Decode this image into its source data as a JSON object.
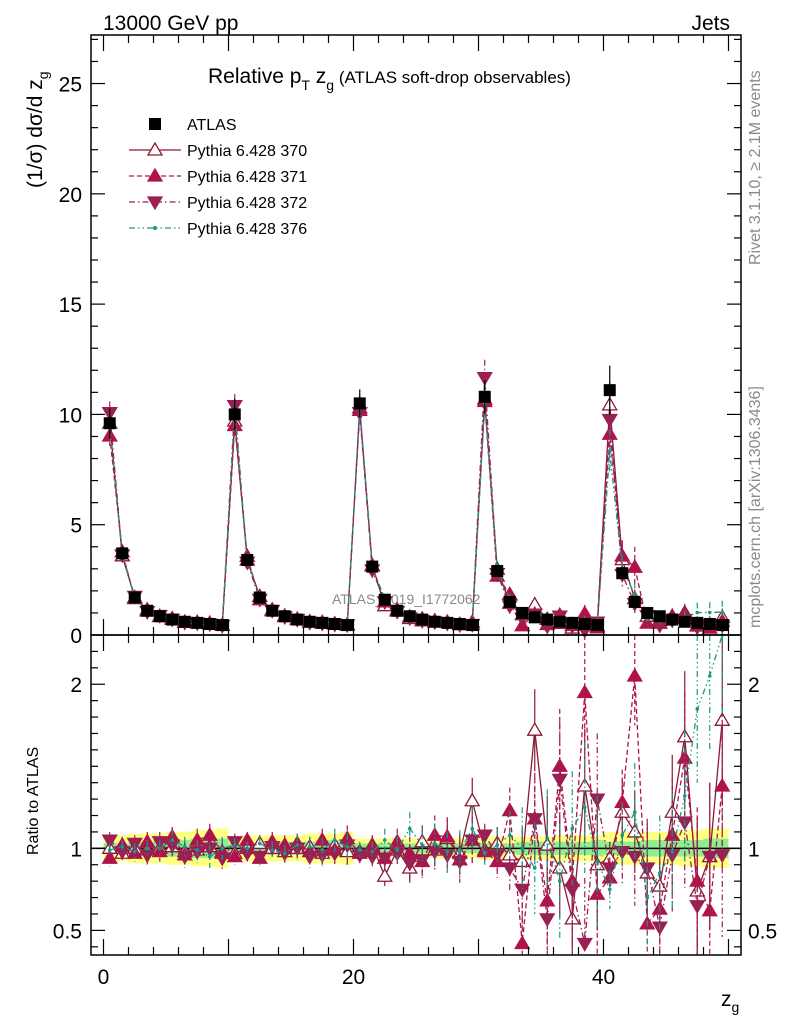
{
  "header": {
    "left": "13000 GeV pp",
    "right": "Jets"
  },
  "side_labels": {
    "rivet": "Rivet 3.1.10, ≥ 2.1M events",
    "mcplots": "mcplots.cern.ch [arXiv:1306.3436]"
  },
  "watermark": "ATLAS_2019_I1772062",
  "chart_data": {
    "type": "line",
    "title": "Relative p_T z_g (ATLAS soft-drop observables)",
    "title_parts": {
      "main": "Relative p",
      "sub_T": "T",
      "mid": " z",
      "sub_g": "g",
      "rest": " (ATLAS soft-drop observables)"
    },
    "xlabel": "z_g",
    "xlabel_parts": {
      "main": "z",
      "sub": "g"
    },
    "ylabel": "(1/σ) dσ/d z_g",
    "ylabel_parts": {
      "main": "(1/σ) dσ/d z",
      "sub": "g"
    },
    "ratio_ylabel": "Ratio to ATLAS",
    "xlim": [
      -1.0,
      51.0
    ],
    "ylim": [
      0,
      27.2
    ],
    "ratio_ylim": [
      0.35,
      2.3
    ],
    "x_ticks": [
      0,
      20,
      40
    ],
    "y_ticks": [
      0,
      5,
      10,
      15,
      20,
      25
    ],
    "ratio_ticks": [
      0.5,
      1,
      2
    ],
    "ratio_tick_labels": [
      "0.5",
      "1",
      "2"
    ],
    "legend_position": "top-left",
    "colors": {
      "atlas": "#000000",
      "p370": "#8a1a33",
      "p371": "#b0124b",
      "p372": "#9a1f52",
      "p376": "#169a86",
      "band_stat": "#90ee90",
      "band_total": "#ffff80"
    },
    "x": [
      0.5,
      1.5,
      2.5,
      3.5,
      4.5,
      5.5,
      6.5,
      7.5,
      8.5,
      9.5,
      10.5,
      11.5,
      12.5,
      13.5,
      14.5,
      15.5,
      16.5,
      17.5,
      18.5,
      19.5,
      20.5,
      21.5,
      22.5,
      23.5,
      24.5,
      25.5,
      26.5,
      27.5,
      28.5,
      29.5,
      30.5,
      31.5,
      32.5,
      33.5,
      34.5,
      35.5,
      36.5,
      37.5,
      38.5,
      39.5,
      40.5,
      41.5,
      42.5,
      43.5,
      44.5,
      45.5,
      46.5,
      47.5,
      48.5,
      49.5
    ],
    "atlas": {
      "name": "ATLAS",
      "values": [
        9.6,
        3.7,
        1.7,
        1.1,
        0.85,
        0.7,
        0.6,
        0.55,
        0.5,
        0.45,
        10.0,
        3.4,
        1.7,
        1.1,
        0.85,
        0.7,
        0.6,
        0.55,
        0.5,
        0.45,
        10.5,
        3.1,
        1.6,
        1.1,
        0.85,
        0.7,
        0.6,
        0.55,
        0.5,
        0.45,
        10.8,
        2.9,
        1.5,
        1.0,
        0.8,
        0.7,
        0.6,
        0.55,
        0.5,
        0.45,
        11.1,
        2.8,
        1.5,
        1.0,
        0.85,
        0.7,
        0.6,
        0.55,
        0.5,
        0.45
      ],
      "total_err": [
        0.07,
        0.08,
        0.09,
        0.09,
        0.09,
        0.1,
        0.1,
        0.11,
        0.11,
        0.12,
        0.07,
        0.08,
        0.08,
        0.08,
        0.08,
        0.08,
        0.09,
        0.09,
        0.09,
        0.1,
        0.06,
        0.06,
        0.06,
        0.06,
        0.06,
        0.06,
        0.06,
        0.06,
        0.06,
        0.06,
        0.07,
        0.07,
        0.07,
        0.07,
        0.07,
        0.07,
        0.08,
        0.08,
        0.08,
        0.08,
        0.1,
        0.1,
        0.1,
        0.1,
        0.1,
        0.1,
        0.11,
        0.11,
        0.12,
        0.12
      ],
      "stat_err": [
        0.03,
        0.03,
        0.04,
        0.04,
        0.05,
        0.05,
        0.05,
        0.06,
        0.06,
        0.06,
        0.03,
        0.03,
        0.03,
        0.04,
        0.04,
        0.04,
        0.04,
        0.05,
        0.05,
        0.05,
        0.03,
        0.03,
        0.03,
        0.03,
        0.03,
        0.03,
        0.03,
        0.03,
        0.03,
        0.03,
        0.03,
        0.03,
        0.03,
        0.04,
        0.04,
        0.04,
        0.04,
        0.04,
        0.04,
        0.05,
        0.04,
        0.04,
        0.04,
        0.05,
        0.05,
        0.05,
        0.05,
        0.05,
        0.06,
        0.06
      ]
    },
    "series": [
      {
        "name": "Pythia 6.428 370",
        "ratio": [
          1.0,
          0.97,
          1.0,
          0.99,
          1.0,
          1.01,
          0.98,
          0.99,
          1.01,
          0.97,
          0.97,
          1.0,
          1.03,
          1.0,
          0.98,
          1.0,
          1.01,
          0.97,
          1.02,
          0.98,
          0.98,
          1.02,
          0.83,
          0.99,
          0.88,
          1.04,
          0.99,
          1.06,
          0.97,
          1.29,
          0.99,
          1.03,
          0.96,
          0.92,
          1.72,
          1.02,
          0.88,
          0.57,
          1.38,
          0.9,
          0.94,
          1.22,
          1.1,
          0.85,
          0.77,
          1.22,
          1.68,
          0.74,
          0.95,
          1.78
        ],
        "err": [
          0.04,
          0.04,
          0.05,
          0.05,
          0.05,
          0.06,
          0.06,
          0.06,
          0.07,
          0.07,
          0.04,
          0.04,
          0.05,
          0.05,
          0.05,
          0.06,
          0.06,
          0.07,
          0.07,
          0.08,
          0.05,
          0.06,
          0.06,
          0.08,
          0.09,
          0.1,
          0.1,
          0.12,
          0.12,
          0.14,
          0.06,
          0.1,
          0.12,
          0.2,
          0.25,
          0.3,
          0.3,
          0.35,
          0.35,
          0.4,
          0.1,
          0.2,
          0.25,
          0.3,
          0.3,
          0.35,
          0.4,
          0.45,
          0.45,
          0.5
        ]
      },
      {
        "name": "Pythia 6.428 371",
        "ratio": [
          0.94,
          1.02,
          0.97,
          1.04,
          0.98,
          1.07,
          0.96,
          1.05,
          1.08,
          0.98,
          0.95,
          1.05,
          0.94,
          1.04,
          1.02,
          1.03,
          0.98,
          1.05,
          0.99,
          1.06,
          0.97,
          1.01,
          0.94,
          1.04,
          0.97,
          0.92,
          1.08,
          1.07,
          0.93,
          1.05,
          0.98,
          0.92,
          1.23,
          0.42,
          1.18,
          0.68,
          1.5,
          0.8,
          1.95,
          0.72,
          0.82,
          1.28,
          2.05,
          0.54,
          0.63,
          1.08,
          1.55,
          0.8,
          0.62,
          1.38
        ],
        "err": [
          0.05,
          0.05,
          0.05,
          0.06,
          0.06,
          0.06,
          0.07,
          0.07,
          0.07,
          0.08,
          0.05,
          0.05,
          0.05,
          0.06,
          0.06,
          0.06,
          0.07,
          0.07,
          0.08,
          0.08,
          0.05,
          0.06,
          0.06,
          0.08,
          0.1,
          0.1,
          0.12,
          0.12,
          0.13,
          0.14,
          0.07,
          0.1,
          0.14,
          0.25,
          0.25,
          0.3,
          0.35,
          0.35,
          0.4,
          0.4,
          0.12,
          0.2,
          0.3,
          0.3,
          0.35,
          0.35,
          0.4,
          0.45,
          0.45,
          0.5
        ]
      },
      {
        "name": "Pythia 6.428 372",
        "ratio": [
          1.05,
          0.98,
          1.03,
          0.96,
          1.04,
          1.02,
          0.95,
          0.98,
          1.0,
          0.94,
          1.04,
          0.97,
          0.95,
          1.01,
          0.97,
          1.0,
          0.95,
          0.96,
          0.97,
          1.02,
          0.96,
          0.95,
          0.94,
          0.97,
          0.91,
          0.93,
          0.98,
          0.96,
          0.92,
          1.05,
          1.08,
          0.96,
          0.88,
          0.75,
          1.18,
          0.57,
          1.42,
          0.75,
          0.42,
          1.3,
          0.88,
          0.98,
          0.95,
          0.88,
          0.52,
          0.96,
          1.16,
          0.65,
          0.95,
          0.96
        ],
        "err": [
          0.05,
          0.05,
          0.05,
          0.06,
          0.06,
          0.06,
          0.07,
          0.07,
          0.08,
          0.08,
          0.05,
          0.05,
          0.05,
          0.06,
          0.06,
          0.07,
          0.07,
          0.07,
          0.08,
          0.08,
          0.05,
          0.06,
          0.07,
          0.08,
          0.1,
          0.1,
          0.12,
          0.12,
          0.13,
          0.14,
          0.07,
          0.1,
          0.15,
          0.25,
          0.28,
          0.3,
          0.35,
          0.35,
          0.4,
          0.4,
          0.12,
          0.2,
          0.3,
          0.3,
          0.35,
          0.35,
          0.4,
          0.45,
          0.45,
          0.5
        ]
      },
      {
        "name": "Pythia 6.428 376",
        "ratio": [
          0.99,
          1.01,
          0.98,
          1.0,
          1.0,
          1.05,
          1.01,
          0.99,
          0.95,
          1.0,
          1.02,
          1.0,
          1.03,
          0.99,
          0.97,
          1.02,
          1.01,
          0.99,
          1.05,
          1.01,
          0.99,
          0.98,
          1.05,
          0.99,
          1.12,
          1.02,
          1.03,
          0.98,
          0.98,
          1.12,
          0.97,
          1.02,
          1.08,
          1.0,
          0.88,
          1.06,
          0.8,
          1.12,
          1.25,
          0.92,
          0.75,
          1.08,
          1.22,
          0.7,
          0.85,
          0.98,
          1.32,
          1.85,
          2.05,
          2.3
        ],
        "err": [
          0.04,
          0.04,
          0.05,
          0.05,
          0.05,
          0.06,
          0.06,
          0.06,
          0.07,
          0.07,
          0.04,
          0.04,
          0.05,
          0.05,
          0.05,
          0.06,
          0.06,
          0.07,
          0.07,
          0.08,
          0.05,
          0.06,
          0.07,
          0.08,
          0.1,
          0.1,
          0.12,
          0.12,
          0.13,
          0.14,
          0.07,
          0.1,
          0.15,
          0.25,
          0.28,
          0.3,
          0.35,
          0.35,
          0.4,
          0.4,
          0.12,
          0.2,
          0.3,
          0.3,
          0.35,
          0.35,
          0.4,
          0.45,
          0.45,
          0.5
        ]
      }
    ]
  }
}
